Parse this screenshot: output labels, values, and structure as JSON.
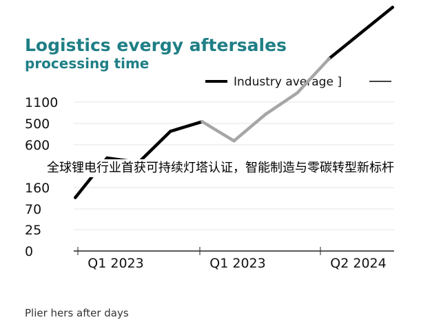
{
  "chart_data": {
    "type": "line",
    "title_line1": "Logistics evergy aftersales",
    "title_line2": "processing time",
    "legend": "Industry average ]",
    "y_ticks": [
      "1100",
      "500",
      "600",
      "",
      "160",
      "70",
      "25",
      "0"
    ],
    "x_ticks": [
      "Q1 2023",
      "Q1 2023",
      "Q2 2024"
    ],
    "footer": "Plier hers after days",
    "series": [
      {
        "color": "#000000",
        "x": [
          0,
          1,
          2,
          3,
          4,
          5,
          6,
          7,
          8,
          9,
          10
        ],
        "y": [
          2.5,
          4.35,
          4.15,
          5.6,
          6.05,
          5.15,
          6.4,
          7.4,
          9.0,
          10.2,
          11.4
        ],
        "gray_segments": [
          4,
          5,
          6,
          7
        ]
      }
    ],
    "ylim": [
      1,
      11.6
    ],
    "xlim": [
      -0.05,
      10.05
    ],
    "grid": true,
    "legend_position": "top-right"
  },
  "overlay_text": "全球锂电行业首获可持续灯塔认证，智能制造与零碳转型新标杆",
  "colors": {
    "title": "#1f7f86",
    "line": "#000000",
    "gray": "#a6a6a6",
    "grid": "#e4e4e4"
  }
}
